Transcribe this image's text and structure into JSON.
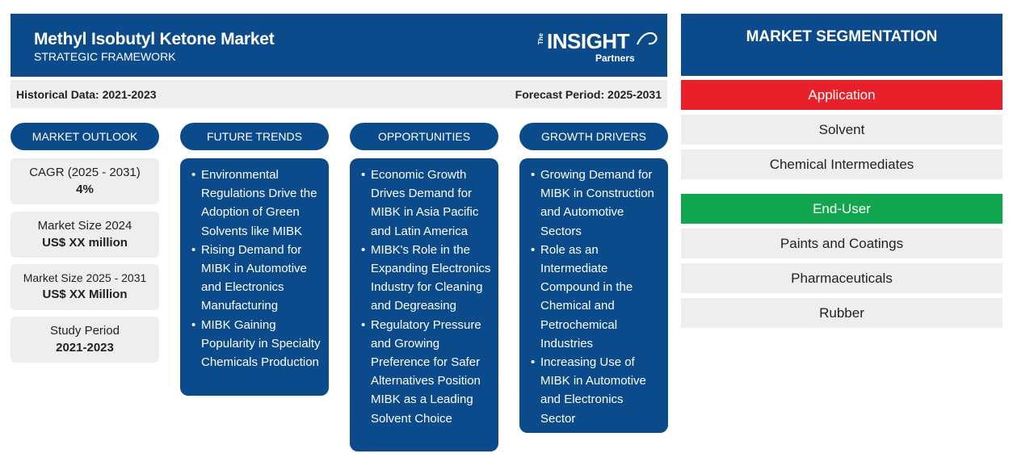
{
  "header": {
    "title": "Methyl Isobutyl Ketone Market",
    "subtitle": "STRATEGIC FRAMEWORK",
    "logo": {
      "the": "The",
      "insight": "INSIGHT",
      "partners": "Partners"
    }
  },
  "infobar": {
    "historical": "Historical Data: 2021-2023",
    "forecast": "Forecast Period: 2025-2031"
  },
  "columns": {
    "outlook": "MARKET OUTLOOK",
    "trends": "FUTURE TRENDS",
    "opportunities": "OPPORTUNITIES",
    "drivers": "GROWTH DRIVERS"
  },
  "stats": [
    {
      "label": "CAGR (2025 - 2031)",
      "value": "4%"
    },
    {
      "label": "Market Size 2024",
      "value": "US$ XX million"
    },
    {
      "label": "Market Size 2025 - 2031",
      "value": "US$ XX Million"
    },
    {
      "label": "Study Period",
      "value": "2021-2023"
    }
  ],
  "trends": [
    "Environmental Regulations Drive the Adoption of Green Solvents like MIBK",
    "Rising Demand for MIBK in Automotive and Electronics Manufacturing",
    "MIBK Gaining Popularity in Specialty Chemicals Production"
  ],
  "opportunities": [
    "Economic Growth Drives Demand for MIBK in Asia Pacific and Latin America",
    "MIBK's Role in the Expanding Electronics Industry for Cleaning and Degreasing",
    "Regulatory Pressure and Growing Preference for Safer Alternatives Position MIBK as a Leading Solvent Choice"
  ],
  "drivers": [
    "Growing Demand for MIBK in Construction and Automotive Sectors",
    "Role as an Intermediate Compound in the Chemical and Petrochemical Industries",
    "Increasing Use of MIBK in Automotive and Electronics Sector"
  ],
  "segmentation": {
    "title": "MARKET SEGMENTATION",
    "application": {
      "label": "Application",
      "color": "#e8202a",
      "items": [
        "Solvent",
        "Chemical Intermediates"
      ]
    },
    "end_user": {
      "label": "End-User",
      "color": "#12a650",
      "items": [
        "Paints and Coatings",
        "Pharmaceuticals",
        "Rubber"
      ]
    }
  },
  "colors": {
    "brand_blue": "#0b4a8b",
    "panel_grey": "#eeeeee"
  }
}
